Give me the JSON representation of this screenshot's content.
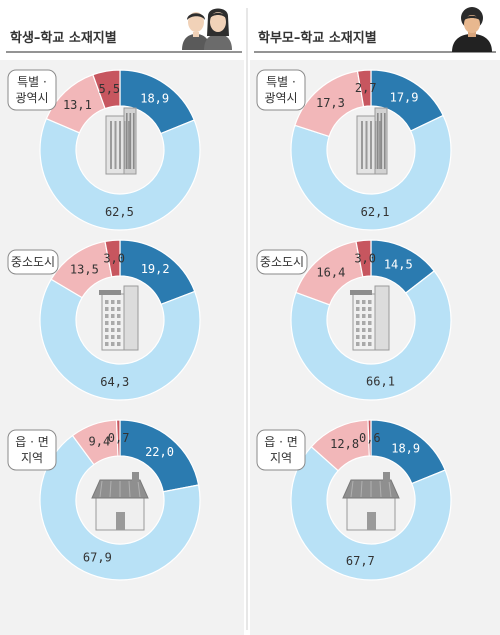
{
  "panels": [
    {
      "title": "학생–학교 소재지별"
    },
    {
      "title": "학부모–학교 소재지별"
    }
  ],
  "regions": [
    [
      "특별 ·",
      "광역시"
    ],
    [
      "중소도시"
    ],
    [
      "읍 · 면",
      "지역"
    ]
  ],
  "colors": {
    "segments": [
      "#2b7bb0",
      "#b8e1f6",
      "#f2b7b9",
      "#c7565f"
    ],
    "panel_bg": "#f2f2f2",
    "title_underline": "#555555"
  },
  "chart_data": [
    {
      "type": "pie",
      "style": "donut",
      "panel": "학생–학교 소재지별",
      "region": "특별 · 광역시",
      "values": [
        18.9,
        62.5,
        13.1,
        5.5
      ],
      "labels": [
        "18,9",
        "62,5",
        "13,1",
        "5,5"
      ],
      "icon": "building-icon"
    },
    {
      "type": "pie",
      "style": "donut",
      "panel": "학생–학교 소재지별",
      "region": "중소도시",
      "values": [
        19.2,
        64.3,
        13.5,
        3.0
      ],
      "labels": [
        "19,2",
        "64,3",
        "13,5",
        "3,0"
      ],
      "icon": "apartment-icon"
    },
    {
      "type": "pie",
      "style": "donut",
      "panel": "학생–학교 소재지별",
      "region": "읍 · 면 지역",
      "values": [
        22.0,
        67.9,
        9.4,
        0.7
      ],
      "labels": [
        "22,0",
        "67,9",
        "9,4",
        "0,7"
      ],
      "icon": "house-icon"
    },
    {
      "type": "pie",
      "style": "donut",
      "panel": "학부모–학교 소재지별",
      "region": "특별 · 광역시",
      "values": [
        17.9,
        62.1,
        17.3,
        2.7
      ],
      "labels": [
        "17,9",
        "62,1",
        "17,3",
        "2,7"
      ],
      "icon": "building-icon"
    },
    {
      "type": "pie",
      "style": "donut",
      "panel": "학부모–학교 소재지별",
      "region": "중소도시",
      "values": [
        14.5,
        66.1,
        16.4,
        3.0
      ],
      "labels": [
        "14,5",
        "66,1",
        "16,4",
        "3,0"
      ],
      "icon": "apartment-icon"
    },
    {
      "type": "pie",
      "style": "donut",
      "panel": "학부모–학교 소재지별",
      "region": "읍 · 면 지역",
      "values": [
        18.9,
        67.7,
        12.8,
        0.6
      ],
      "labels": [
        "18,9",
        "67,7",
        "12,8",
        "0,6"
      ],
      "icon": "house-icon"
    }
  ]
}
